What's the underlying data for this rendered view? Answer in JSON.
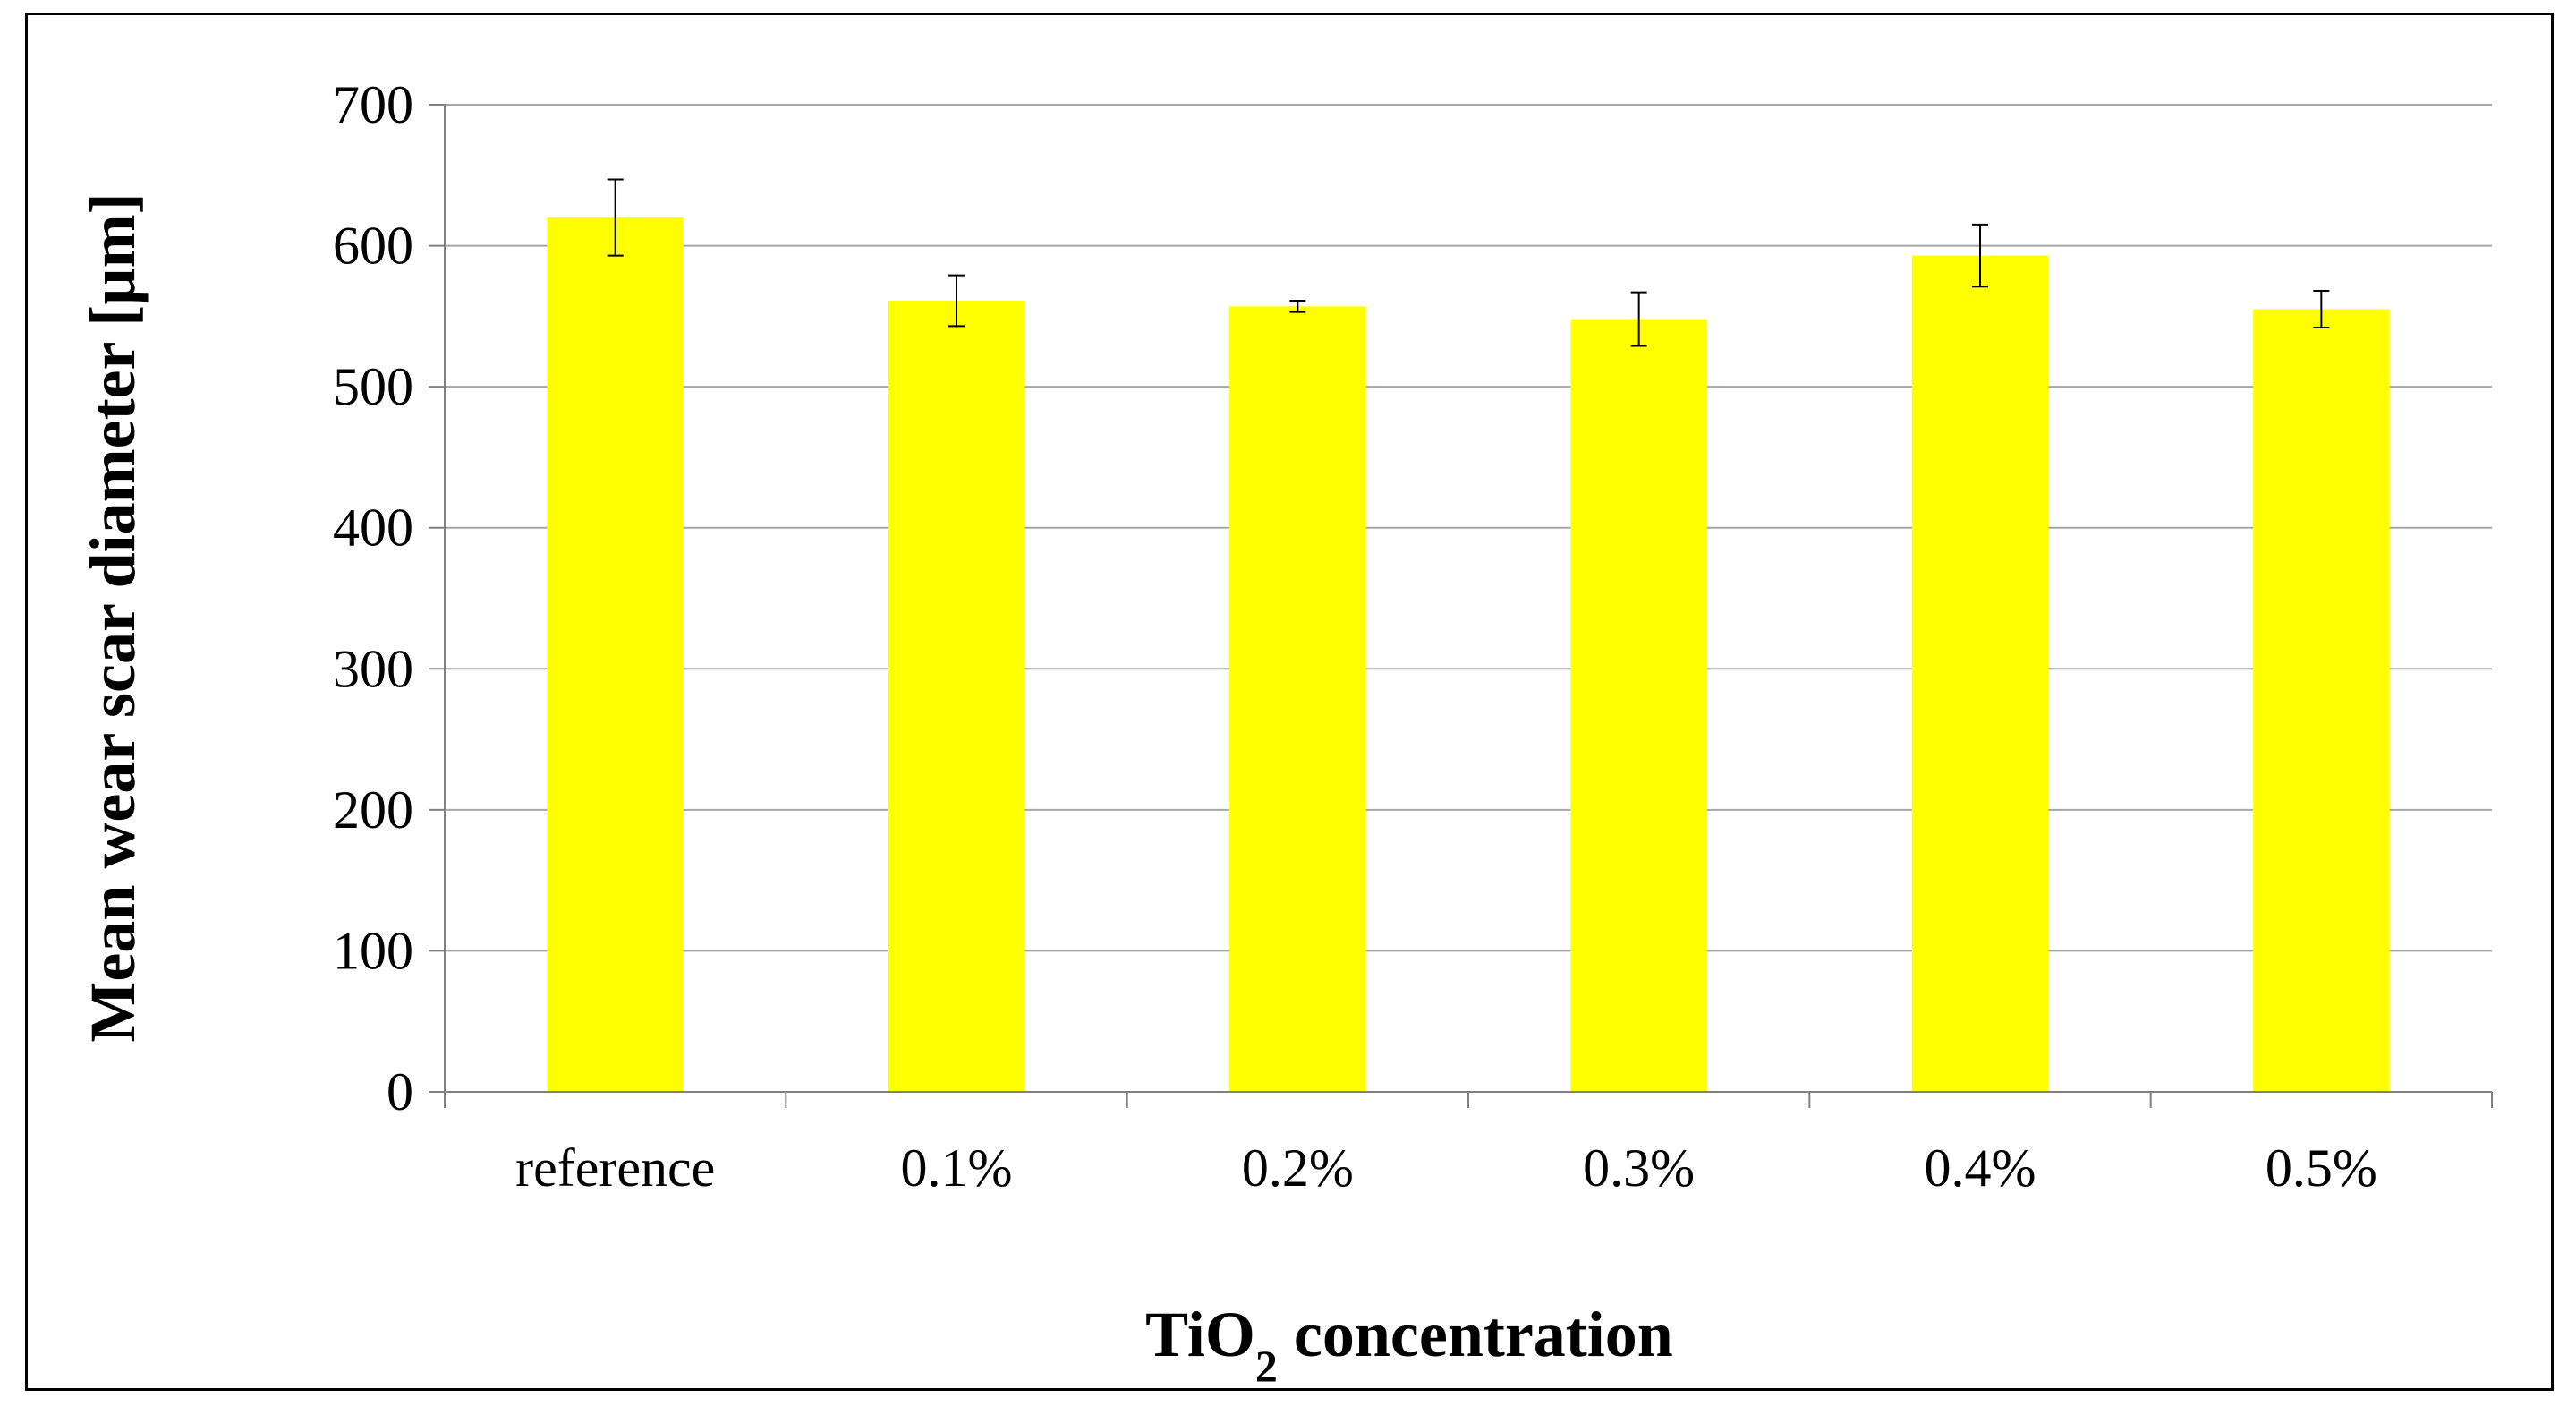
{
  "chart_data": {
    "type": "bar",
    "categories": [
      "reference",
      "0.1%",
      "0.2%",
      "0.3%",
      "0.4%",
      "0.5%"
    ],
    "series": [
      {
        "values": [
          620,
          561,
          557,
          548,
          593,
          555
        ],
        "error": [
          27,
          18,
          4,
          19,
          22,
          13
        ]
      }
    ],
    "ylabel": "Mean wear scar diameter [µm]",
    "xlabel": {
      "base": "TiO",
      "subscript": "2",
      "rest": " concentration"
    },
    "ylim": [
      0,
      700
    ],
    "yticks": [
      0,
      100,
      200,
      300,
      400,
      500,
      600,
      700
    ],
    "grid": true,
    "legend": "none",
    "bar_color": "#FFFF00",
    "grid_color": "#A6A6A6",
    "axis_color": "#808080"
  }
}
